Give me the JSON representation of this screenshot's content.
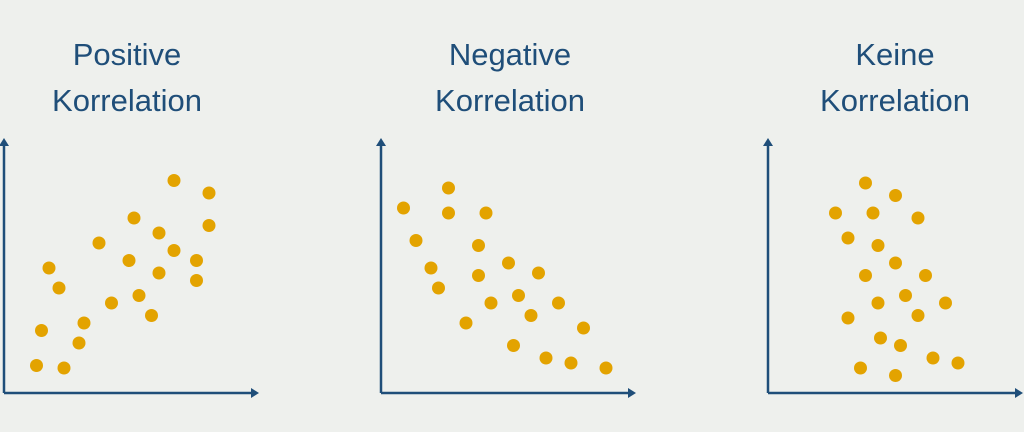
{
  "colors": {
    "background": "#eef0ed",
    "axis": "#1f4e79",
    "points": "#e3a300",
    "title": "#1f4e79"
  },
  "chart_data": [
    {
      "type": "scatter",
      "title": [
        "Positive",
        "Korrelation"
      ],
      "xlabel": "",
      "ylabel": "",
      "xlim": [
        0,
        100
      ],
      "ylim": [
        0,
        100
      ],
      "grid": false,
      "points": [
        [
          13,
          11
        ],
        [
          24,
          10
        ],
        [
          15,
          25
        ],
        [
          30,
          20
        ],
        [
          32,
          28
        ],
        [
          18,
          50
        ],
        [
          22,
          42
        ],
        [
          38,
          60
        ],
        [
          43,
          36
        ],
        [
          50,
          53
        ],
        [
          52,
          70
        ],
        [
          54,
          39
        ],
        [
          59,
          31
        ],
        [
          62,
          64
        ],
        [
          62,
          48
        ],
        [
          68,
          57
        ],
        [
          68,
          85
        ],
        [
          77,
          53
        ],
        [
          77,
          45
        ],
        [
          82,
          80
        ],
        [
          82,
          67
        ]
      ]
    },
    {
      "type": "scatter",
      "title": [
        "Negative",
        "Korrelation"
      ],
      "xlabel": "",
      "ylabel": "",
      "xlim": [
        0,
        100
      ],
      "ylim": [
        0,
        100
      ],
      "grid": false,
      "points": [
        [
          9,
          74
        ],
        [
          14,
          61
        ],
        [
          20,
          50
        ],
        [
          23,
          42
        ],
        [
          27,
          82
        ],
        [
          27,
          72
        ],
        [
          34,
          28
        ],
        [
          39,
          59
        ],
        [
          39,
          47
        ],
        [
          42,
          72
        ],
        [
          44,
          36
        ],
        [
          51,
          52
        ],
        [
          53,
          19
        ],
        [
          55,
          39
        ],
        [
          60,
          31
        ],
        [
          63,
          48
        ],
        [
          66,
          14
        ],
        [
          71,
          36
        ],
        [
          76,
          12
        ],
        [
          81,
          26
        ],
        [
          90,
          10
        ]
      ]
    },
    {
      "type": "scatter",
      "title": [
        "Keine",
        "Korrelation"
      ],
      "xlabel": "",
      "ylabel": "",
      "xlim": [
        0,
        100
      ],
      "ylim": [
        0,
        100
      ],
      "grid": false,
      "points": [
        [
          27,
          72
        ],
        [
          32,
          62
        ],
        [
          32,
          30
        ],
        [
          37,
          10
        ],
        [
          39,
          84
        ],
        [
          39,
          47
        ],
        [
          42,
          72
        ],
        [
          44,
          59
        ],
        [
          44,
          36
        ],
        [
          45,
          22
        ],
        [
          51,
          79
        ],
        [
          51,
          52
        ],
        [
          51,
          7
        ],
        [
          53,
          19
        ],
        [
          55,
          39
        ],
        [
          60,
          70
        ],
        [
          60,
          31
        ],
        [
          63,
          47
        ],
        [
          66,
          14
        ],
        [
          71,
          36
        ],
        [
          76,
          12
        ]
      ]
    }
  ]
}
